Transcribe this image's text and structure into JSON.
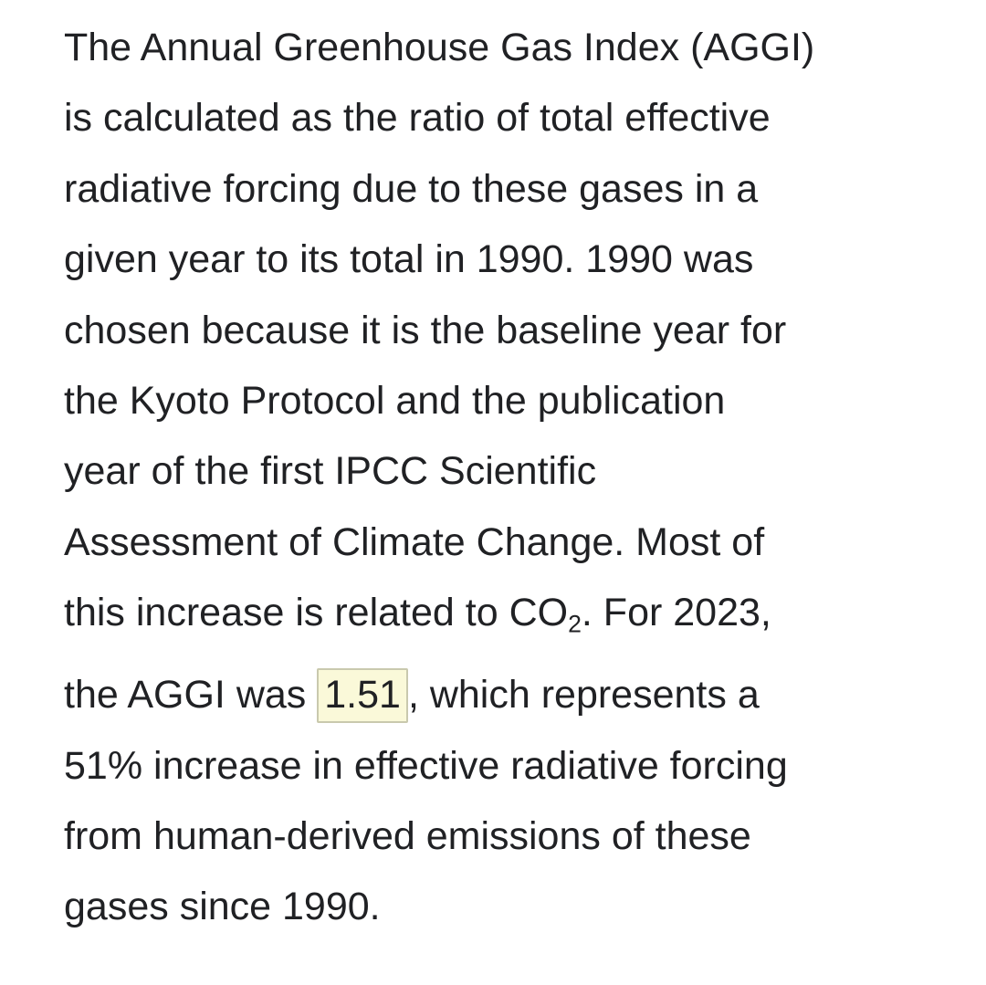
{
  "page": {
    "background_color": "#ffffff",
    "text_color": "#202124",
    "highlight_background_color": "#faf9d9",
    "highlight_border_color": "#c9c9ae",
    "highlighted_value": "1.51"
  },
  "paragraph": {
    "full_text": "The Annual Greenhouse Gas Index (AGGI) is calculated as the ratio of total effective radiative forcing due to these gases in a given year to its total in 1990. 1990 was chosen because it is the baseline year for the Kyoto Protocol and the publication year of the first IPCC Scientific Assessment of Climate Change. Most of this increase is related to CO2. For 2023, the AGGI was 1.51, which represents a 51% increase in effective radiative forcing from human-derived emissions of these gases since 1990.",
    "lines": [
      [
        {
          "t": "The Annual Greenhouse Gas Index (AGGI)",
          "style": "normal"
        }
      ],
      [
        {
          "t": "is calculated as the ratio of total effective",
          "style": "normal"
        }
      ],
      [
        {
          "t": "radiative forcing due to these gases in a",
          "style": "normal"
        }
      ],
      [
        {
          "t": "given year to its total in 1990. 1990 was",
          "style": "normal"
        }
      ],
      [
        {
          "t": "chosen because it is the baseline year for",
          "style": "normal"
        }
      ],
      [
        {
          "t": "the Kyoto Protocol and the publication",
          "style": "normal"
        }
      ],
      [
        {
          "t": "year of the first IPCC Scientific",
          "style": "normal"
        }
      ],
      [
        {
          "t": "Assessment of Climate Change. Most of",
          "style": "normal"
        }
      ],
      [
        {
          "t": "this increase is related to CO",
          "style": "normal"
        },
        {
          "t": "2",
          "style": "sub"
        },
        {
          "t": ". For 2023,",
          "style": "normal"
        }
      ],
      [
        {
          "t": "the AGGI was ",
          "style": "normal"
        },
        {
          "t": "1.51",
          "style": "highlight"
        },
        {
          "t": ", which represents a",
          "style": "normal"
        }
      ],
      [
        {
          "t": "51% increase in effective radiative forcing",
          "style": "normal"
        }
      ],
      [
        {
          "t": "from human-derived emissions of these",
          "style": "normal"
        }
      ],
      [
        {
          "t": "gases since 1990.",
          "style": "normal"
        }
      ]
    ]
  }
}
